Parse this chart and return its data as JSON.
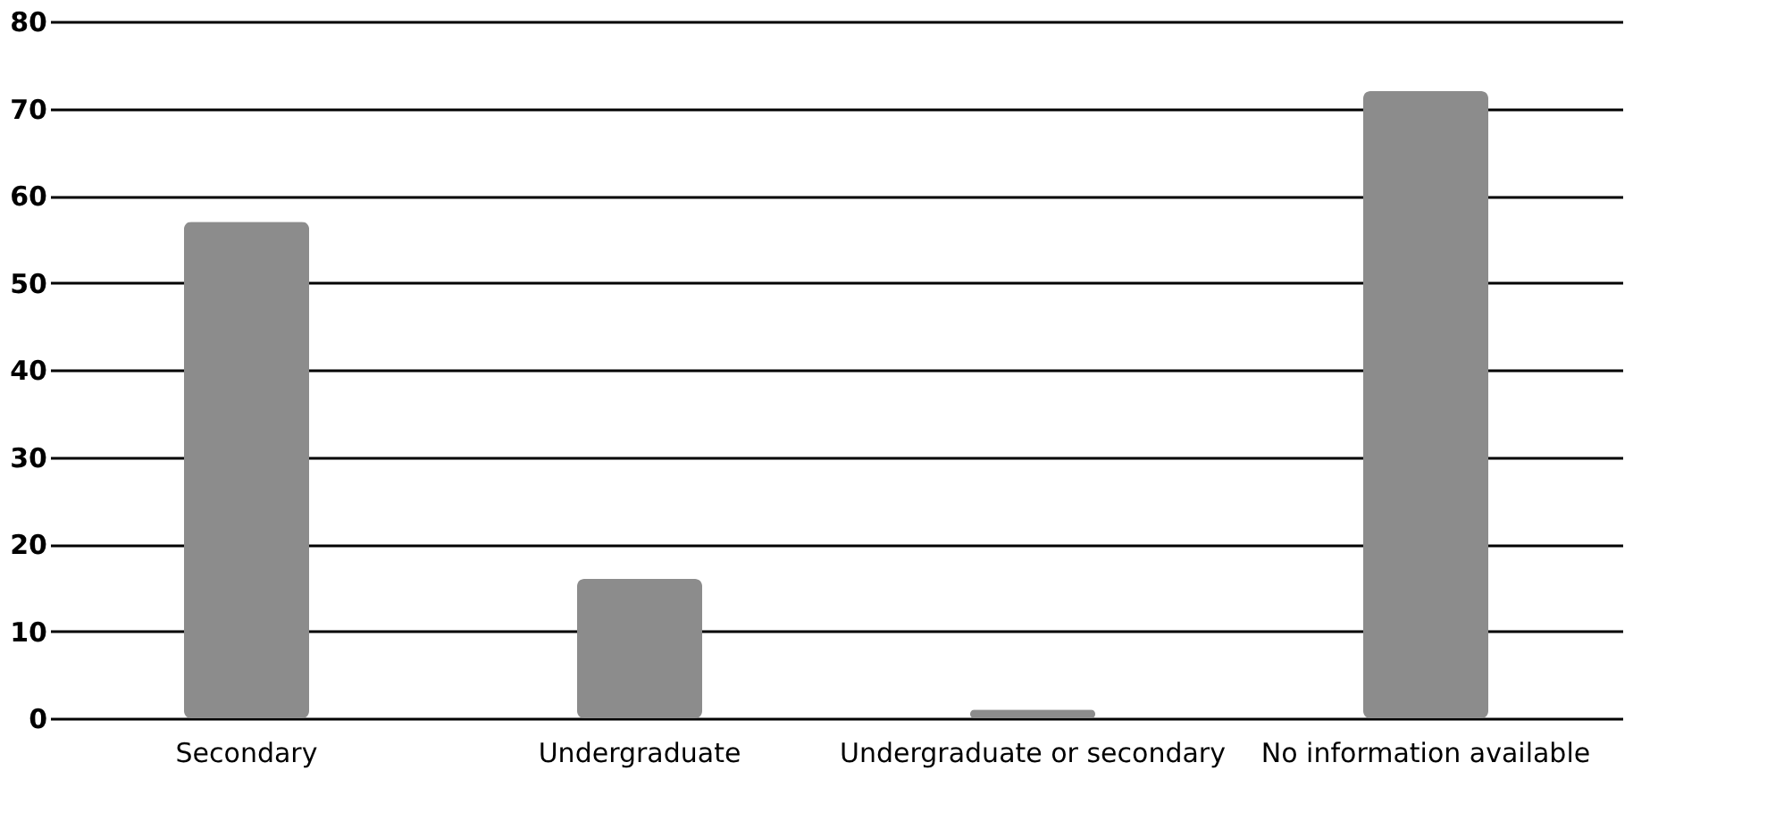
{
  "chart_data": {
    "type": "bar",
    "categories": [
      "Secondary",
      "Undergraduate",
      "Undergraduate or secondary",
      "No information available"
    ],
    "values": [
      57,
      16,
      1,
      72
    ],
    "color": "#8c8c8c",
    "ylim": [
      0,
      80
    ],
    "yticks": [
      0,
      10,
      20,
      30,
      40,
      50,
      60,
      70,
      80
    ],
    "grid": "y"
  }
}
